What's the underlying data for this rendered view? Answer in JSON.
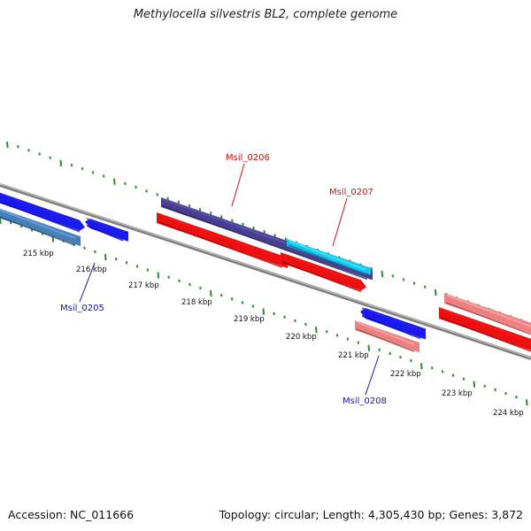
{
  "title": "Methylocella silvestris BL2, complete genome",
  "footer": {
    "accession": "Accession: NC_011666",
    "summary": "Topology: circular; Length: 4,305,430 bp; Genes: 3,872"
  },
  "colors": {
    "backbone": "#7f7f7f",
    "tick": "#2e8b2e",
    "label_red": "#d01010",
    "label_blue": "#1515b5"
  },
  "scale": {
    "unit": "kbp",
    "labels": [
      "215 kbp",
      "216 kbp",
      "217 kbp",
      "218 kbp",
      "219 kbp",
      "220 kbp",
      "221 kbp",
      "222 kbp",
      "223 kbp",
      "224 kbp"
    ]
  },
  "gene_labels": [
    {
      "name": "Msil_0206",
      "color": "#d01010"
    },
    {
      "name": "Msil_0207",
      "color": "#d01010"
    },
    {
      "name": "Msil_0205",
      "color": "#1515b5"
    },
    {
      "name": "Msil_0208",
      "color": "#1515b5"
    }
  ],
  "features": [
    {
      "name": "gene-upper-left-blue",
      "color": "#1a1aee",
      "strand": "+"
    },
    {
      "name": "gene-upper-left-steel",
      "color": "#4a7fb5",
      "strand": "+"
    },
    {
      "name": "gene-small-blue",
      "color": "#1a1aee",
      "strand": "+"
    },
    {
      "name": "gene-msil-0206",
      "color": "#4a3f8f",
      "strand": "+"
    },
    {
      "name": "gene-msil-0207",
      "color": "#1ec0ee",
      "strand": "+"
    },
    {
      "name": "gene-red-long",
      "color": "#ee1010",
      "strand": "+"
    },
    {
      "name": "gene-msil-0208-blue",
      "color": "#1a1aee",
      "strand": "-"
    },
    {
      "name": "gene-msil-0208-pink",
      "color": "#ee8080",
      "strand": "+"
    },
    {
      "name": "gene-right-pink",
      "color": "#ee8080",
      "strand": "+"
    },
    {
      "name": "gene-right-red",
      "color": "#ee1010",
      "strand": "+"
    }
  ]
}
